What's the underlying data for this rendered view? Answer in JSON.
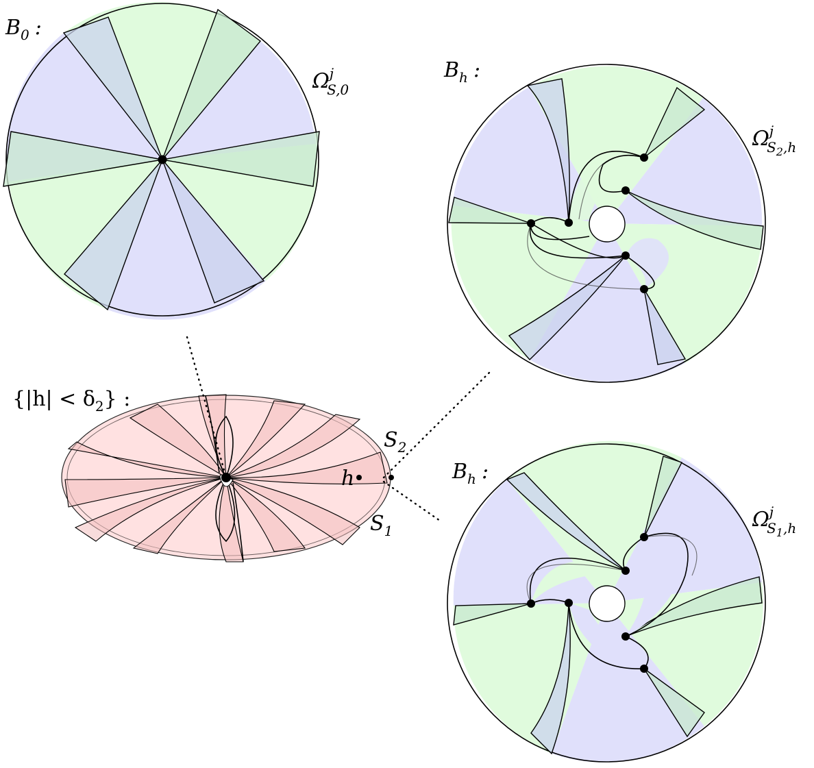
{
  "labels": {
    "b0": "B",
    "b0_sub": "0",
    "b0_colon": ":",
    "omega_s0": "Ω",
    "omega_s0_sup": "j",
    "omega_s0_sub": "S,0",
    "bh_top": "B",
    "bh_top_sub": "h",
    "bh_top_colon": ":",
    "omega_s2h": "Ω",
    "omega_s2h_sup": "j",
    "omega_s2h_sub": "S",
    "omega_s2h_subsub": "2",
    "omega_s2h_tail": ",h",
    "bh_bot": "B",
    "bh_bot_sub": "h",
    "bh_bot_colon": ":",
    "omega_s1h": "Ω",
    "omega_s1h_sup": "j",
    "omega_s1h_sub": "S",
    "omega_s1h_subsub": "1",
    "omega_s1h_tail": ",h",
    "disk": "{|h| < δ",
    "disk_sub": "2",
    "disk_tail": "} :",
    "s2": "S",
    "s2_sub": "2",
    "s1": "S",
    "s1_sub": "1",
    "h": "h"
  },
  "colors": {
    "green_region": "#e0fbdd",
    "blue_region": "#e0e0fb",
    "red_region": "#ffdcdc"
  }
}
